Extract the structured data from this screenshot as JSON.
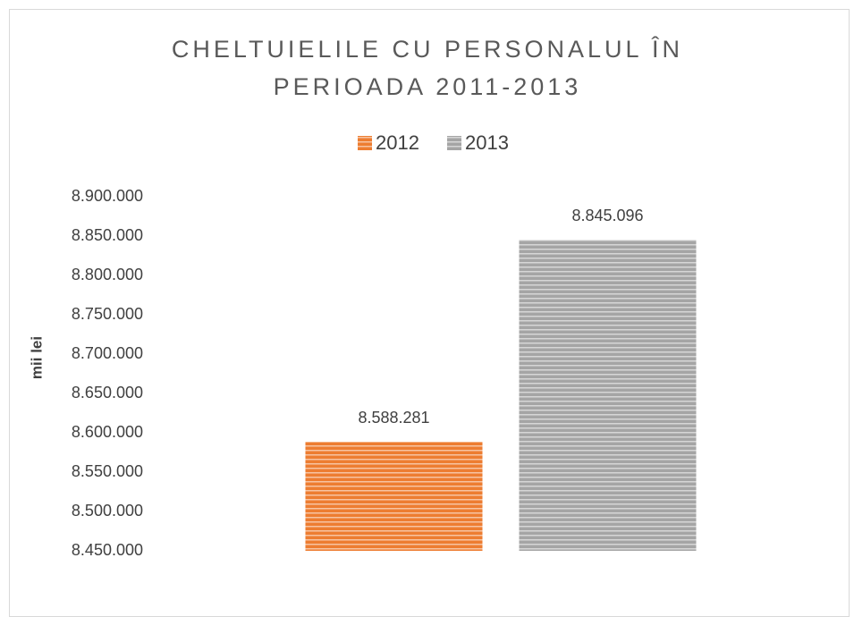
{
  "chart_data": {
    "type": "bar",
    "title": "CHELTUIELILE CU PERSONALUL ÎN PERIOADA 2011-2013",
    "y_label": "mii lei",
    "categories": [
      null
    ],
    "series": [
      {
        "name": "2012",
        "color": "#ed7d31",
        "values": [
          8588281
        ],
        "value_labels": [
          "8.588.281"
        ]
      },
      {
        "name": "2013",
        "color": "#a5a5a5",
        "values": [
          8845096
        ],
        "value_labels": [
          "8.845.096"
        ]
      }
    ],
    "ylim": [
      8450000,
      8900000
    ],
    "yticks": [
      {
        "value": 8450000,
        "label": "8.450.000"
      },
      {
        "value": 8500000,
        "label": "8.500.000"
      },
      {
        "value": 8550000,
        "label": "8.550.000"
      },
      {
        "value": 8600000,
        "label": "8.600.000"
      },
      {
        "value": 8650000,
        "label": "8.650.000"
      },
      {
        "value": 8700000,
        "label": "8.700.000"
      },
      {
        "value": 8750000,
        "label": "8.750.000"
      },
      {
        "value": 8800000,
        "label": "8.800.000"
      },
      {
        "value": 8850000,
        "label": "8.850.000"
      },
      {
        "value": 8900000,
        "label": "8.900.000"
      }
    ],
    "grid": false,
    "legend": "top"
  }
}
